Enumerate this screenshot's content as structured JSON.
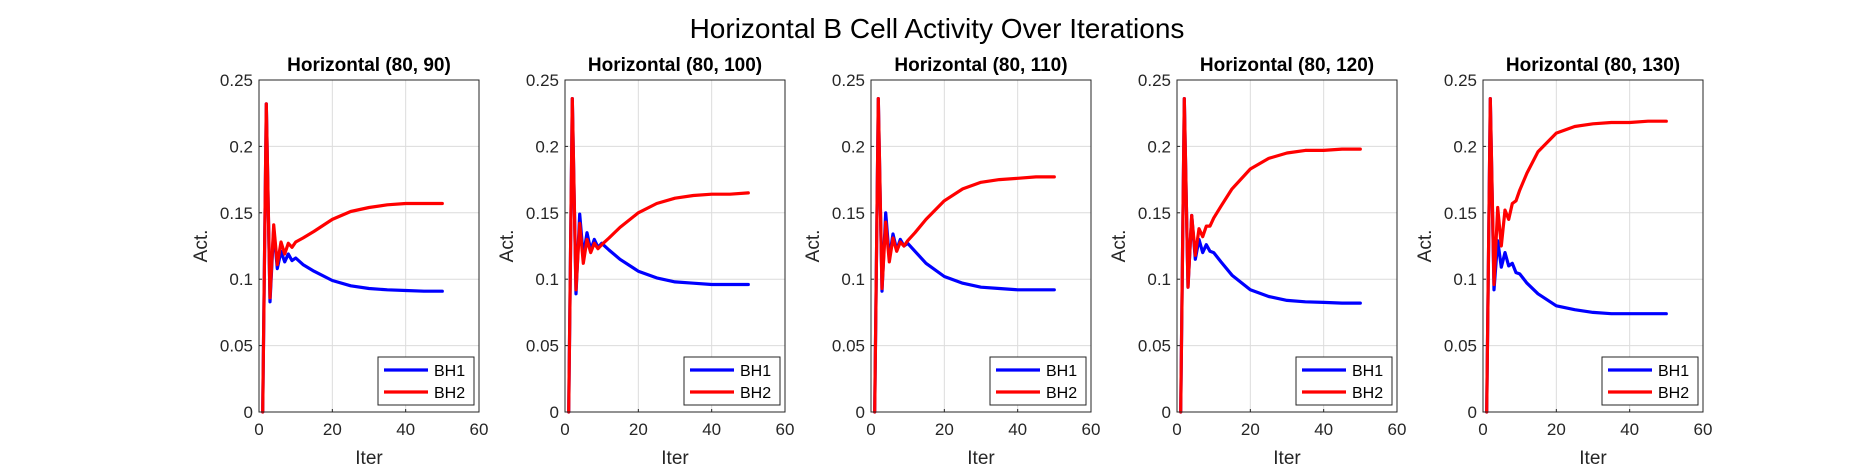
{
  "figure_title": "Horizontal B Cell Activity Over Iterations",
  "colors": {
    "BH1": "#0000ff",
    "BH2": "#ff0000"
  },
  "chart_data": [
    {
      "type": "line",
      "title": "Horizontal (80, 90)",
      "xlabel": "Iter",
      "ylabel": "Act.",
      "xlim": [
        0,
        60
      ],
      "ylim": [
        0,
        0.25
      ],
      "xticks": [
        0,
        20,
        40,
        60
      ],
      "yticks": [
        0,
        0.05,
        0.1,
        0.15,
        0.2,
        0.25
      ],
      "grid": true,
      "legend": "bottom-right",
      "series": [
        {
          "name": "BH1",
          "x": [
            1,
            2,
            3,
            4,
            5,
            6,
            7,
            8,
            9,
            10,
            12,
            15,
            20,
            25,
            30,
            35,
            40,
            45,
            50
          ],
          "y": [
            0,
            0.232,
            0.083,
            0.138,
            0.108,
            0.121,
            0.113,
            0.119,
            0.114,
            0.116,
            0.111,
            0.106,
            0.099,
            0.095,
            0.093,
            0.092,
            0.0915,
            0.091,
            0.091
          ]
        },
        {
          "name": "BH2",
          "x": [
            1,
            2,
            3,
            4,
            5,
            6,
            7,
            8,
            9,
            10,
            12,
            15,
            20,
            25,
            30,
            35,
            40,
            45,
            50
          ],
          "y": [
            0,
            0.232,
            0.086,
            0.141,
            0.111,
            0.128,
            0.119,
            0.127,
            0.124,
            0.128,
            0.131,
            0.136,
            0.145,
            0.151,
            0.154,
            0.156,
            0.157,
            0.157,
            0.157
          ]
        }
      ]
    },
    {
      "type": "line",
      "title": "Horizontal (80, 100)",
      "xlabel": "Iter",
      "ylabel": "Act.",
      "xlim": [
        0,
        60
      ],
      "ylim": [
        0,
        0.25
      ],
      "xticks": [
        0,
        20,
        40,
        60
      ],
      "yticks": [
        0,
        0.05,
        0.1,
        0.15,
        0.2,
        0.25
      ],
      "grid": true,
      "legend": "bottom-right",
      "series": [
        {
          "name": "BH1",
          "x": [
            1,
            2,
            3,
            4,
            5,
            6,
            7,
            8,
            9,
            10,
            12,
            15,
            20,
            25,
            30,
            35,
            40,
            45,
            50
          ],
          "y": [
            0,
            0.236,
            0.089,
            0.149,
            0.117,
            0.135,
            0.122,
            0.13,
            0.124,
            0.127,
            0.122,
            0.115,
            0.106,
            0.101,
            0.098,
            0.097,
            0.096,
            0.096,
            0.096
          ]
        },
        {
          "name": "BH2",
          "x": [
            1,
            2,
            3,
            4,
            5,
            6,
            7,
            8,
            9,
            10,
            12,
            15,
            20,
            25,
            30,
            35,
            40,
            45,
            50
          ],
          "y": [
            0,
            0.236,
            0.092,
            0.142,
            0.112,
            0.13,
            0.12,
            0.127,
            0.123,
            0.126,
            0.131,
            0.139,
            0.15,
            0.157,
            0.161,
            0.163,
            0.164,
            0.164,
            0.165
          ]
        }
      ]
    },
    {
      "type": "line",
      "title": "Horizontal (80, 110)",
      "xlabel": "Iter",
      "ylabel": "Act.",
      "xlim": [
        0,
        60
      ],
      "ylim": [
        0,
        0.25
      ],
      "xticks": [
        0,
        20,
        40,
        60
      ],
      "yticks": [
        0,
        0.05,
        0.1,
        0.15,
        0.2,
        0.25
      ],
      "grid": true,
      "legend": "bottom-right",
      "series": [
        {
          "name": "BH1",
          "x": [
            1,
            2,
            3,
            4,
            5,
            6,
            7,
            8,
            9,
            10,
            12,
            15,
            20,
            25,
            30,
            35,
            40,
            45,
            50
          ],
          "y": [
            0,
            0.236,
            0.091,
            0.15,
            0.116,
            0.134,
            0.122,
            0.13,
            0.125,
            0.127,
            0.121,
            0.112,
            0.102,
            0.097,
            0.094,
            0.093,
            0.092,
            0.092,
            0.092
          ]
        },
        {
          "name": "BH2",
          "x": [
            1,
            2,
            3,
            4,
            5,
            6,
            7,
            8,
            9,
            10,
            12,
            15,
            20,
            25,
            30,
            35,
            40,
            45,
            50
          ],
          "y": [
            0,
            0.236,
            0.093,
            0.143,
            0.113,
            0.131,
            0.121,
            0.128,
            0.125,
            0.129,
            0.135,
            0.145,
            0.159,
            0.168,
            0.173,
            0.175,
            0.176,
            0.177,
            0.177
          ]
        }
      ]
    },
    {
      "type": "line",
      "title": "Horizontal (80, 120)",
      "xlabel": "Iter",
      "ylabel": "Act.",
      "xlim": [
        0,
        60
      ],
      "ylim": [
        0,
        0.25
      ],
      "xticks": [
        0,
        20,
        40,
        60
      ],
      "yticks": [
        0,
        0.05,
        0.1,
        0.15,
        0.2,
        0.25
      ],
      "grid": true,
      "legend": "bottom-right",
      "series": [
        {
          "name": "BH1",
          "x": [
            1,
            2,
            3,
            4,
            5,
            6,
            7,
            8,
            9,
            10,
            12,
            15,
            20,
            25,
            30,
            35,
            40,
            45,
            50
          ],
          "y": [
            0,
            0.236,
            0.094,
            0.148,
            0.115,
            0.13,
            0.12,
            0.126,
            0.121,
            0.12,
            0.113,
            0.103,
            0.092,
            0.087,
            0.084,
            0.083,
            0.0825,
            0.082,
            0.082
          ]
        },
        {
          "name": "BH2",
          "x": [
            1,
            2,
            3,
            4,
            5,
            6,
            7,
            8,
            9,
            10,
            12,
            15,
            20,
            25,
            30,
            35,
            40,
            45,
            50
          ],
          "y": [
            0,
            0.236,
            0.094,
            0.148,
            0.118,
            0.138,
            0.132,
            0.14,
            0.14,
            0.146,
            0.155,
            0.168,
            0.183,
            0.191,
            0.195,
            0.197,
            0.197,
            0.198,
            0.198
          ]
        }
      ]
    },
    {
      "type": "line",
      "title": "Horizontal (80, 130)",
      "xlabel": "Iter",
      "ylabel": "Act.",
      "xlim": [
        0,
        60
      ],
      "ylim": [
        0,
        0.25
      ],
      "xticks": [
        0,
        20,
        40,
        60
      ],
      "yticks": [
        0,
        0.05,
        0.1,
        0.15,
        0.2,
        0.25
      ],
      "grid": true,
      "legend": "bottom-right",
      "series": [
        {
          "name": "BH1",
          "x": [
            1,
            2,
            3,
            4,
            5,
            6,
            7,
            8,
            9,
            10,
            12,
            15,
            20,
            25,
            30,
            35,
            40,
            45,
            50
          ],
          "y": [
            0,
            0.236,
            0.092,
            0.129,
            0.109,
            0.12,
            0.11,
            0.112,
            0.105,
            0.104,
            0.097,
            0.089,
            0.08,
            0.077,
            0.075,
            0.074,
            0.074,
            0.074,
            0.074
          ]
        },
        {
          "name": "BH2",
          "x": [
            1,
            2,
            3,
            4,
            5,
            6,
            7,
            8,
            9,
            10,
            12,
            15,
            20,
            25,
            30,
            35,
            40,
            45,
            50
          ],
          "y": [
            0,
            0.236,
            0.096,
            0.154,
            0.125,
            0.152,
            0.145,
            0.157,
            0.159,
            0.167,
            0.18,
            0.196,
            0.21,
            0.215,
            0.217,
            0.218,
            0.218,
            0.219,
            0.219
          ]
        }
      ]
    }
  ]
}
